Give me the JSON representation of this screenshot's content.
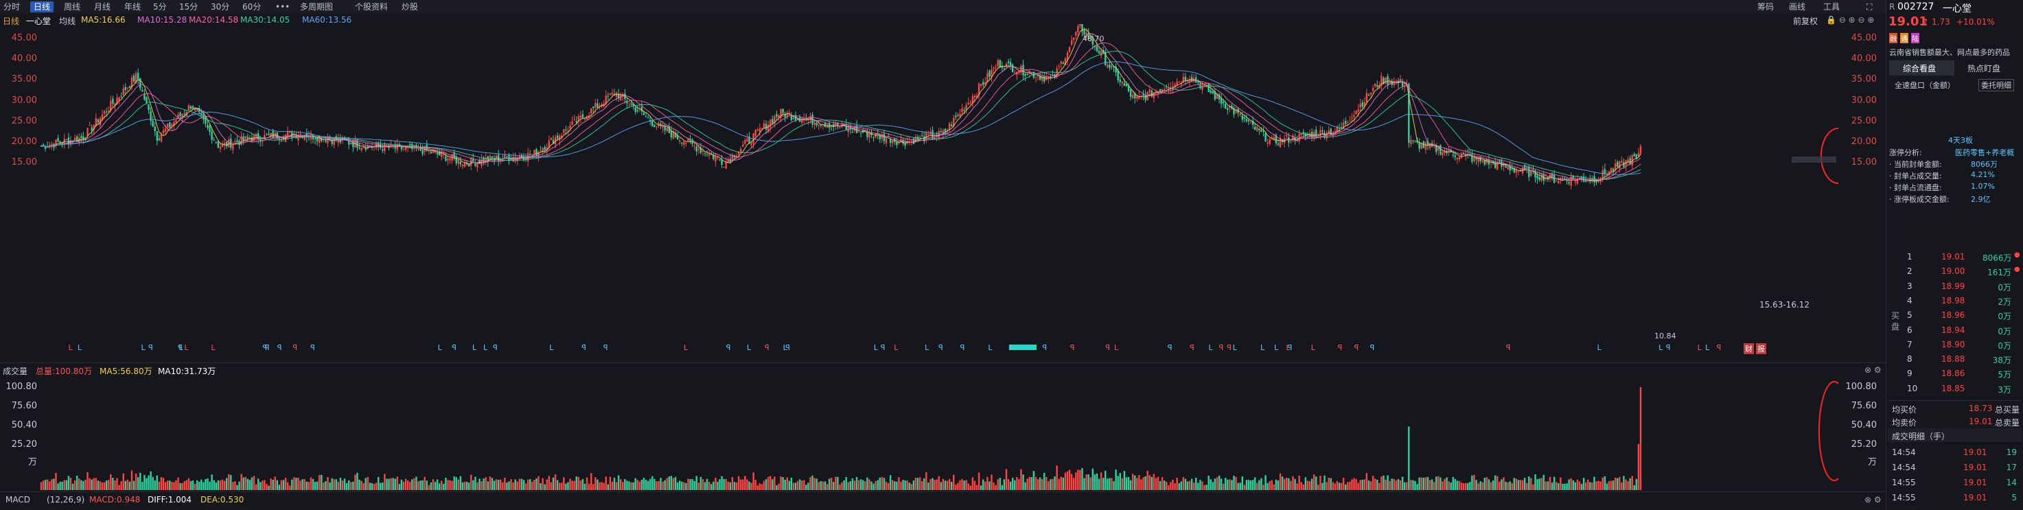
{
  "toolbar": {
    "period_tabs": [
      "分时",
      "日线",
      "周线",
      "月线",
      "年线",
      "5分",
      "15分",
      "30分",
      "60分"
    ],
    "active_tab": "日线",
    "more": "•••",
    "multi_period": "多周期图",
    "stock_profile": "个股资料",
    "review": "炒股",
    "right_items": [
      "筹码",
      "画线",
      "工具"
    ]
  },
  "chart_header": {
    "period": "日线",
    "name": "一心堂",
    "ma_label": "均线",
    "ma5": "MA5:16.66",
    "ma10": "MA10:15.28",
    "ma20": "MA20:14.58",
    "ma30": "MA30:14.05",
    "ma60": "MA60:13.56",
    "adjust": "前复权"
  },
  "price_axis": [
    "45.00",
    "40.00",
    "35.00",
    "30.00",
    "25.00",
    "20.00",
    "15.00"
  ],
  "annotations": {
    "high": "48.70",
    "low": "10.84",
    "range": "15.63-16.12",
    "fin_badge": "财",
    "report_badge": "报"
  },
  "volume_header": {
    "title": "成交量",
    "total": "总量:100.80万",
    "ma5": "MA5:56.80万",
    "ma10": "MA10:31.73万"
  },
  "volume_axis": [
    "100.80",
    "75.60",
    "50.40",
    "25.20",
    "万"
  ],
  "macd_header": {
    "title": "MACD",
    "params": "(12,26,9)",
    "macd": "MACD:0.948",
    "diff": "DIFF:1.004",
    "dea": "DEA:0.530"
  },
  "quote": {
    "prefix": "R",
    "code": "002727",
    "name": "一心堂",
    "price": "19.01",
    "change": "1.73",
    "pct": "+10.01%",
    "tags": [
      "融",
      "通",
      "陆"
    ],
    "desc": "云南省销售额最大、网点最多的药品",
    "tab1": "综合看盘",
    "tab2": "热点盯盘",
    "subtab1": "全速盘口（金额）",
    "subtab2": "委托明细",
    "limit_title": "4天3板",
    "limit_items": [
      {
        "k": "涨停分析:",
        "v": "医药零售+养老概"
      },
      {
        "k": "· 当前封单金额:",
        "v": "8066万"
      },
      {
        "k": "· 封单占成交量:",
        "v": "4.21%"
      },
      {
        "k": "· 封单占流通盘:",
        "v": "1.07%"
      },
      {
        "k": "· 涨停板成交金额:",
        "v": "2.9亿"
      }
    ],
    "buy_label": "买盘",
    "bids": [
      {
        "n": "1",
        "p": "19.01",
        "v": "8066万"
      },
      {
        "n": "2",
        "p": "19.00",
        "v": "161万"
      },
      {
        "n": "3",
        "p": "18.99",
        "v": "0万"
      },
      {
        "n": "4",
        "p": "18.98",
        "v": "2万"
      },
      {
        "n": "5",
        "p": "18.96",
        "v": "0万"
      },
      {
        "n": "6",
        "p": "18.94",
        "v": "0万"
      },
      {
        "n": "7",
        "p": "18.90",
        "v": "0万"
      },
      {
        "n": "8",
        "p": "18.88",
        "v": "38万"
      },
      {
        "n": "9",
        "p": "18.86",
        "v": "5万"
      },
      {
        "n": "10",
        "p": "18.85",
        "v": "3万"
      }
    ],
    "avg_buy_label": "均买价",
    "avg_buy": "18.73",
    "total_buy_label": "总买量",
    "avg_sell_label": "均卖价",
    "avg_sell": "19.01",
    "total_sell_label": "总卖量",
    "trades_title": "成交明细（手）",
    "trades": [
      {
        "t": "14:54",
        "p": "19.01",
        "v": "19"
      },
      {
        "t": "14:54",
        "p": "19.01",
        "v": "17"
      },
      {
        "t": "14:55",
        "p": "19.01",
        "v": "14"
      },
      {
        "t": "14:55",
        "p": "19.01",
        "v": "5"
      }
    ]
  },
  "colors": {
    "up": "#ff4444",
    "down": "#2bd49f",
    "ma5": "#f3d04a",
    "ma10": "#e070d8",
    "ma20": "#58a6ff",
    "accent": "#2b5bb8"
  }
}
